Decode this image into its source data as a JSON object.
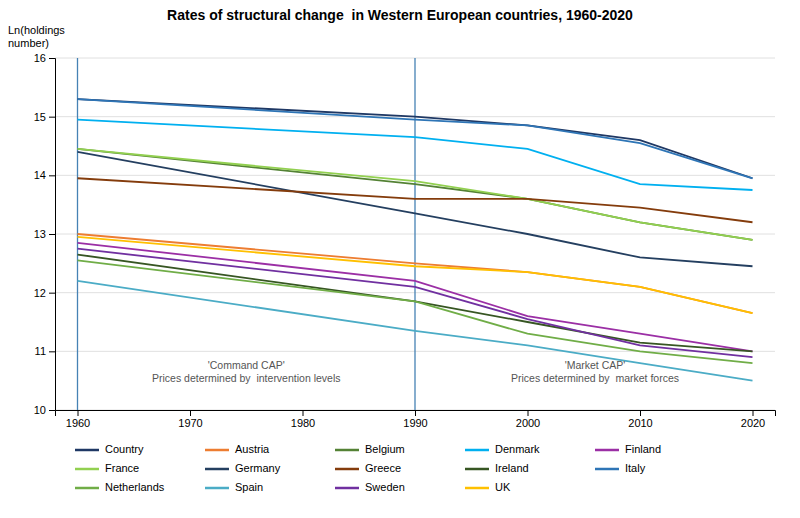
{
  "chart_data": {
    "type": "line",
    "title": "Rates of structural change  in Western European countries, 1960-2020",
    "ylabel": "Ln(holdings\nnumber)",
    "x": [
      1960,
      1990,
      2000,
      2010,
      2020
    ],
    "xlim": [
      1958,
      2022
    ],
    "xticks": [
      1960,
      1970,
      1980,
      1990,
      2000,
      2010,
      2020
    ],
    "ylim": [
      10,
      16
    ],
    "yticks": [
      10,
      11,
      12,
      13,
      14,
      15,
      16
    ],
    "grid": true,
    "legend": "bottom",
    "vlines": [
      1960,
      1990
    ],
    "annotations": [
      "'Command CAP'\nPrices determined by  intervention levels",
      "'Market CAP'\nPrices determined by  market forces"
    ],
    "series": [
      {
        "name": "Country",
        "color": "#1F3864",
        "values": [
          15.3,
          15.0,
          14.85,
          14.6,
          13.95
        ]
      },
      {
        "name": "Austria",
        "color": "#ED7D31",
        "values": [
          13.0,
          12.5,
          12.35,
          12.1,
          11.65
        ]
      },
      {
        "name": "Belgium",
        "color": "#548235",
        "values": [
          14.45,
          13.85,
          13.6,
          13.2,
          12.9
        ]
      },
      {
        "name": "Denmark",
        "color": "#00B0F0",
        "values": [
          14.95,
          14.65,
          14.45,
          13.85,
          13.75
        ]
      },
      {
        "name": "Finland",
        "color": "#9B2FA5",
        "values": [
          12.85,
          12.2,
          11.6,
          11.3,
          11.0
        ]
      },
      {
        "name": "France",
        "color": "#92D050",
        "values": [
          14.45,
          13.9,
          13.6,
          13.2,
          12.9
        ]
      },
      {
        "name": "Germany",
        "color": "#243F60",
        "values": [
          14.4,
          13.35,
          13.0,
          12.6,
          12.45
        ]
      },
      {
        "name": "Greece",
        "color": "#843C0C",
        "values": [
          13.95,
          13.6,
          13.6,
          13.45,
          13.2
        ]
      },
      {
        "name": "Ireland",
        "color": "#375623",
        "values": [
          12.65,
          11.85,
          11.5,
          11.15,
          11.0
        ]
      },
      {
        "name": "Italy",
        "color": "#2E75B6",
        "values": [
          15.3,
          14.95,
          14.85,
          14.55,
          13.95
        ]
      },
      {
        "name": "Netherlands",
        "color": "#70AD47",
        "values": [
          12.55,
          11.85,
          11.3,
          11.0,
          10.8
        ]
      },
      {
        "name": "Spain",
        "color": "#4BACC6",
        "values": [
          12.2,
          11.35,
          11.1,
          10.8,
          10.5
        ]
      },
      {
        "name": "Sweden",
        "color": "#7030A0",
        "values": [
          12.75,
          12.1,
          11.55,
          11.1,
          10.9
        ]
      },
      {
        "name": "UK",
        "color": "#FFC000",
        "values": [
          12.95,
          12.45,
          12.35,
          12.1,
          11.65
        ]
      }
    ]
  }
}
